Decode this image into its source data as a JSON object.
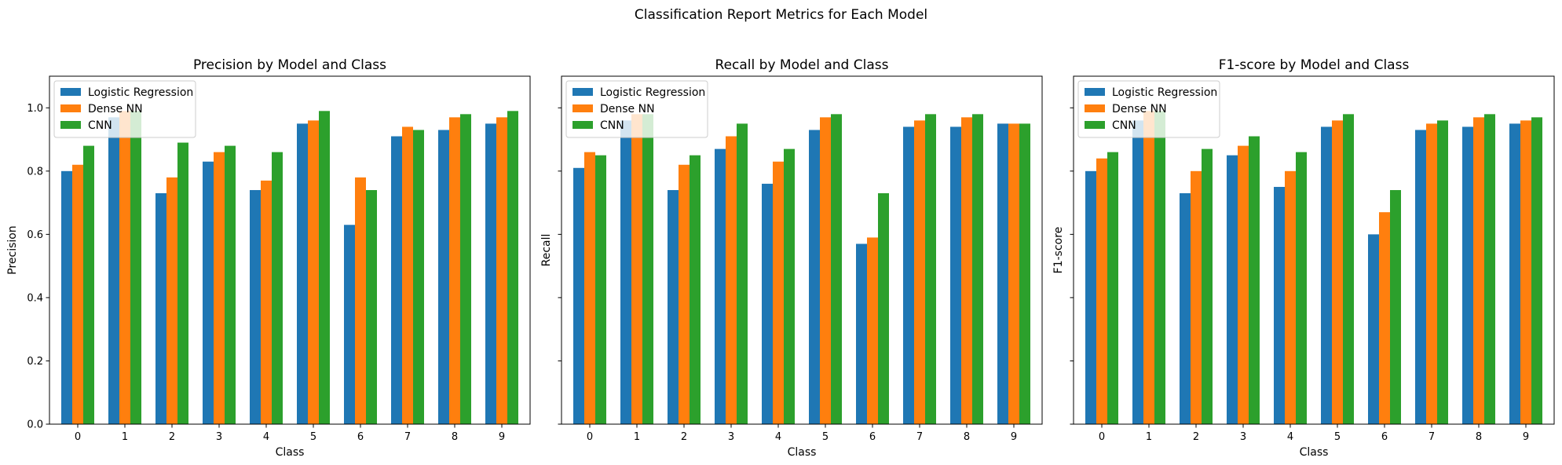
{
  "figure": {
    "suptitle": "Classification Report Metrics for Each Model"
  },
  "chart_data": [
    {
      "type": "bar",
      "title": "Precision by Model and Class",
      "xlabel": "Class",
      "ylabel": "Precision",
      "ylim": [
        0,
        1.1
      ],
      "yticks": [
        "0.0",
        "0.2",
        "0.4",
        "0.6",
        "0.8",
        "1.0"
      ],
      "yticks_visible": true,
      "categories": [
        "0",
        "1",
        "2",
        "3",
        "4",
        "5",
        "6",
        "7",
        "8",
        "9"
      ],
      "legend": "upper-left",
      "grid": false,
      "series": [
        {
          "name": "Logistic Regression",
          "color": "#1f77b4",
          "values": [
            0.8,
            0.97,
            0.73,
            0.83,
            0.74,
            0.95,
            0.63,
            0.91,
            0.93,
            0.95
          ]
        },
        {
          "name": "Dense NN",
          "color": "#ff7f0e",
          "values": [
            0.82,
            0.99,
            0.78,
            0.86,
            0.77,
            0.96,
            0.78,
            0.94,
            0.97,
            0.97
          ]
        },
        {
          "name": "CNN",
          "color": "#2ca02c",
          "values": [
            0.88,
            0.99,
            0.89,
            0.88,
            0.86,
            0.99,
            0.74,
            0.93,
            0.98,
            0.99
          ]
        }
      ]
    },
    {
      "type": "bar",
      "title": "Recall by Model and Class",
      "xlabel": "Class",
      "ylabel": "Recall",
      "ylim": [
        0,
        1.1
      ],
      "yticks": [
        "0.0",
        "0.2",
        "0.4",
        "0.6",
        "0.8",
        "1.0"
      ],
      "yticks_visible": false,
      "categories": [
        "0",
        "1",
        "2",
        "3",
        "4",
        "5",
        "6",
        "7",
        "8",
        "9"
      ],
      "legend": "upper-left",
      "grid": false,
      "series": [
        {
          "name": "Logistic Regression",
          "color": "#1f77b4",
          "values": [
            0.81,
            0.96,
            0.74,
            0.87,
            0.76,
            0.93,
            0.57,
            0.94,
            0.94,
            0.95
          ]
        },
        {
          "name": "Dense NN",
          "color": "#ff7f0e",
          "values": [
            0.86,
            0.98,
            0.82,
            0.91,
            0.83,
            0.97,
            0.59,
            0.96,
            0.97,
            0.95
          ]
        },
        {
          "name": "CNN",
          "color": "#2ca02c",
          "values": [
            0.85,
            0.98,
            0.85,
            0.95,
            0.87,
            0.98,
            0.73,
            0.98,
            0.98,
            0.95
          ]
        }
      ]
    },
    {
      "type": "bar",
      "title": "F1-score by Model and Class",
      "xlabel": "Class",
      "ylabel": "F1-score",
      "ylim": [
        0,
        1.1
      ],
      "yticks": [
        "0.0",
        "0.2",
        "0.4",
        "0.6",
        "0.8",
        "1.0"
      ],
      "yticks_visible": false,
      "categories": [
        "0",
        "1",
        "2",
        "3",
        "4",
        "5",
        "6",
        "7",
        "8",
        "9"
      ],
      "legend": "upper-left",
      "grid": false,
      "series": [
        {
          "name": "Logistic Regression",
          "color": "#1f77b4",
          "values": [
            0.8,
            0.96,
            0.73,
            0.85,
            0.75,
            0.94,
            0.6,
            0.93,
            0.94,
            0.95
          ]
        },
        {
          "name": "Dense NN",
          "color": "#ff7f0e",
          "values": [
            0.84,
            0.99,
            0.8,
            0.88,
            0.8,
            0.96,
            0.67,
            0.95,
            0.97,
            0.96
          ]
        },
        {
          "name": "CNN",
          "color": "#2ca02c",
          "values": [
            0.86,
            0.99,
            0.87,
            0.91,
            0.86,
            0.98,
            0.74,
            0.96,
            0.98,
            0.97
          ]
        }
      ]
    }
  ]
}
